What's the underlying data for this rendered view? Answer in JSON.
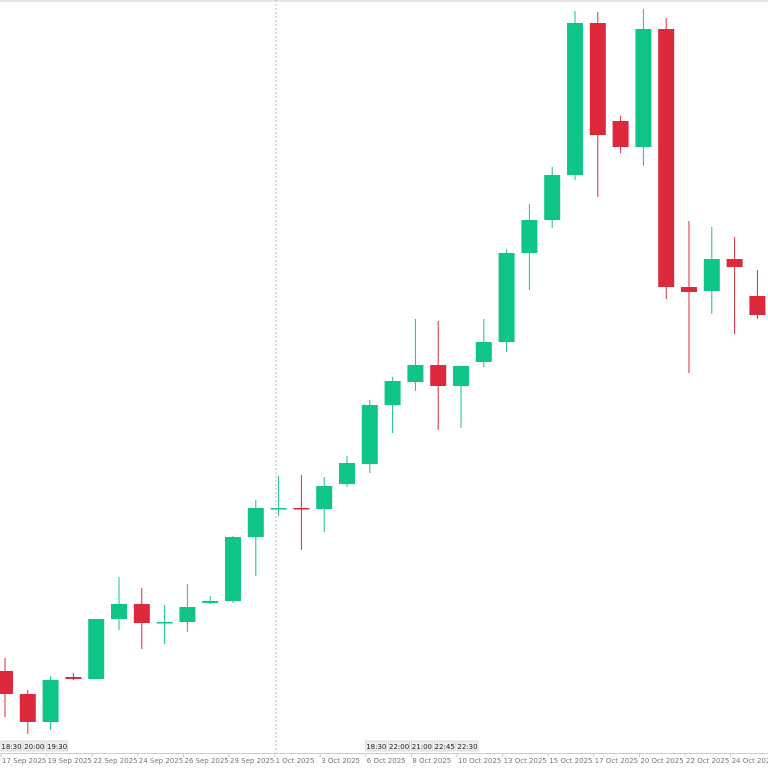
{
  "chart_data": {
    "type": "candlestick",
    "ylim": [
      0,
      768
    ],
    "up_color": "#0ec486",
    "down_color": "#dc2a3c",
    "categories": [
      "17 Sep 2025",
      null,
      "19 Sep 2025",
      null,
      "22 Sep 2025",
      null,
      "24 Sep 2025",
      null,
      "26 Sep 2025",
      null,
      "29 Sep 2025",
      null,
      "1 Oct 2025",
      null,
      "3 Oct 2025",
      null,
      "6 Oct 2025",
      null,
      "8 Oct 2025",
      null,
      "10 Oct 2025",
      null,
      "13 Oct 2025",
      null,
      "15 Oct 2025",
      null,
      "17 Oct 2025",
      null,
      "20 Oct 2025",
      null,
      "22 Oct 2025",
      null,
      "24 Oct 2025",
      null
    ],
    "time_labels": [
      "18:30",
      "20:00",
      "19:30",
      null,
      null,
      null,
      null,
      null,
      null,
      null,
      null,
      null,
      null,
      null,
      null,
      null,
      "18:30",
      "22:00",
      "21:00",
      "22:45",
      "22:30",
      null,
      null,
      null,
      null,
      null,
      null,
      null,
      null,
      null,
      null,
      null,
      null,
      null
    ],
    "open": [
      97,
      74,
      46,
      91,
      89,
      149,
      164,
      145,
      146,
      165,
      167,
      231,
      259,
      260,
      259,
      284,
      304,
      363,
      386,
      403,
      382,
      406,
      426,
      515,
      548,
      593,
      745,
      647,
      621,
      739,
      481,
      477,
      509,
      472
    ],
    "high": [
      110,
      78,
      92,
      95,
      149,
      191,
      180,
      163,
      184,
      172,
      232,
      268,
      292,
      293,
      291,
      312,
      368,
      391,
      449,
      447,
      402,
      449,
      519,
      564,
      601,
      757,
      756,
      652,
      759,
      750,
      547,
      541,
      531,
      498
    ],
    "low": [
      51,
      34,
      38,
      88,
      89,
      138,
      119,
      124,
      136,
      164,
      165,
      192,
      252,
      218,
      236,
      281,
      295,
      335,
      377,
      338,
      340,
      401,
      416,
      478,
      540,
      588,
      571,
      615,
      602,
      469,
      395,
      454,
      434,
      449
    ],
    "close": [
      74,
      46,
      88,
      89,
      149,
      164,
      145,
      146,
      161,
      167,
      231,
      260,
      260,
      259,
      282,
      305,
      363,
      387,
      403,
      382,
      402,
      426,
      515,
      548,
      593,
      745,
      633,
      621,
      739,
      481,
      476,
      509,
      501,
      453
    ]
  }
}
